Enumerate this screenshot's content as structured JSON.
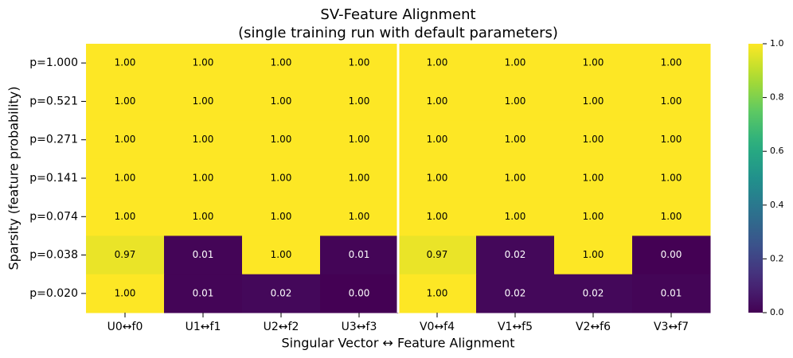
{
  "chart_data": {
    "type": "heatmap",
    "title": "SV-Feature Alignment",
    "subtitle": "(single training run with default parameters)",
    "x_label": "Singular Vector ↔ Feature Alignment",
    "y_label": "Sparsity (feature probability)",
    "categories": [
      "U0↔f0",
      "U1↔f1",
      "U2↔f2",
      "U3↔f3",
      "V0↔f4",
      "V1↔f5",
      "V2↔f6",
      "V3↔f7"
    ],
    "rows": [
      "p=1.000",
      "p=0.521",
      "p=0.271",
      "p=0.141",
      "p=0.074",
      "p=0.038",
      "p=0.020"
    ],
    "values": [
      [
        1,
        1,
        1,
        1,
        1,
        1,
        1,
        1
      ],
      [
        1,
        1,
        1,
        1,
        1,
        1,
        1,
        1
      ],
      [
        1,
        1,
        1,
        1,
        1,
        1,
        1,
        1
      ],
      [
        1,
        1,
        1,
        1,
        1,
        1,
        1,
        1
      ],
      [
        1,
        1,
        1,
        1,
        1,
        1,
        1,
        1
      ],
      [
        0.97,
        0.01,
        1,
        0.01,
        0.97,
        0.02,
        1,
        0
      ],
      [
        1,
        0.01,
        0.02,
        0,
        1,
        0.02,
        0.02,
        0.01
      ]
    ],
    "value_labels": [
      [
        "1.00",
        "1.00",
        "1.00",
        "1.00",
        "1.00",
        "1.00",
        "1.00",
        "1.00"
      ],
      [
        "1.00",
        "1.00",
        "1.00",
        "1.00",
        "1.00",
        "1.00",
        "1.00",
        "1.00"
      ],
      [
        "1.00",
        "1.00",
        "1.00",
        "1.00",
        "1.00",
        "1.00",
        "1.00",
        "1.00"
      ],
      [
        "1.00",
        "1.00",
        "1.00",
        "1.00",
        "1.00",
        "1.00",
        "1.00",
        "1.00"
      ],
      [
        "1.00",
        "1.00",
        "1.00",
        "1.00",
        "1.00",
        "1.00",
        "1.00",
        "1.00"
      ],
      [
        "0.97",
        "0.01",
        "1.00",
        "0.01",
        "0.97",
        "0.02",
        "1.00",
        "0.00"
      ],
      [
        "1.00",
        "0.01",
        "0.02",
        "0.00",
        "1.00",
        "0.02",
        "0.02",
        "0.01"
      ]
    ],
    "colormap": "viridis",
    "clim": [
      0,
      1
    ],
    "cticks": [
      {
        "value": 0,
        "label": "0.0"
      },
      0.2,
      0.4,
      0.6,
      0.8,
      {
        "value": 1,
        "label": "1.0"
      }
    ]
  }
}
